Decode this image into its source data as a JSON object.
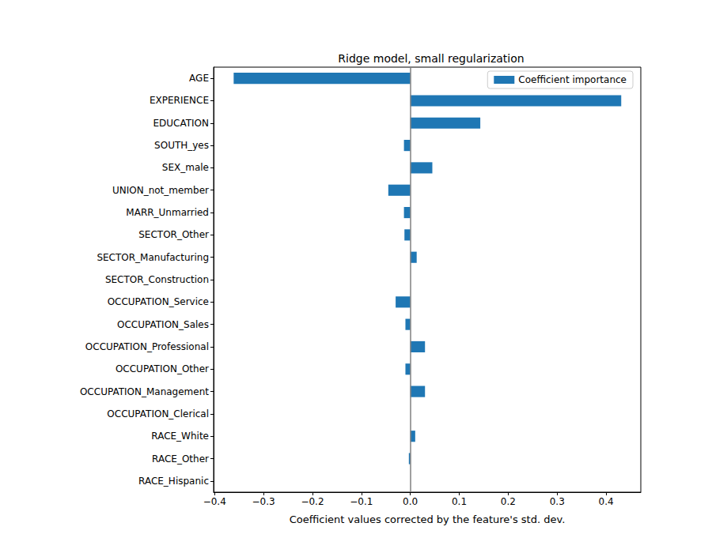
{
  "chart_data": {
    "type": "bar",
    "orientation": "horizontal",
    "title": "Ridge model, small regularization",
    "xlabel": "Coefficient values corrected by the feature's std. dev.",
    "categories": [
      "AGE",
      "EXPERIENCE",
      "EDUCATION",
      "SOUTH_yes",
      "SEX_male",
      "UNION_not_member",
      "MARR_Unmarried",
      "SECTOR_Other",
      "SECTOR_Manufacturing",
      "SECTOR_Construction",
      "OCCUPATION_Service",
      "OCCUPATION_Sales",
      "OCCUPATION_Professional",
      "OCCUPATION_Other",
      "OCCUPATION_Management",
      "OCCUPATION_Clerical",
      "RACE_White",
      "RACE_Other",
      "RACE_Hispanic"
    ],
    "series": [
      {
        "name": "Coefficient importance",
        "color": "#1f77b4",
        "values": [
          -0.361,
          0.431,
          0.143,
          -0.013,
          0.045,
          -0.045,
          -0.013,
          -0.012,
          0.013,
          0.0,
          -0.03,
          -0.01,
          0.03,
          -0.01,
          0.03,
          0.0,
          0.01,
          -0.003,
          0.0
        ]
      }
    ],
    "xlim": [
      -0.402,
      0.471
    ],
    "xticks": [
      {
        "value": -0.4,
        "label": "−0.4"
      },
      {
        "value": -0.3,
        "label": "−0.3"
      },
      {
        "value": -0.2,
        "label": "−0.2"
      },
      {
        "value": -0.1,
        "label": "−0.1"
      },
      {
        "value": 0,
        "label": "0.0"
      },
      0.1,
      0.2,
      0.3,
      0.4
    ],
    "legend": "upper right",
    "grid": false
  }
}
